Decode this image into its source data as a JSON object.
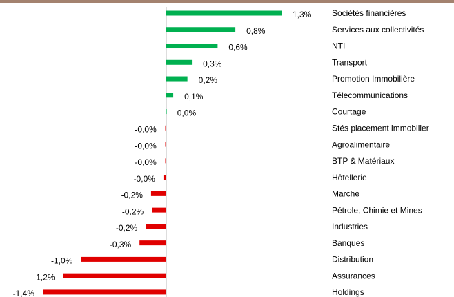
{
  "chart_data": {
    "type": "hbar",
    "categories": [
      "Sociétés financières",
      "Services aux collectivités",
      "NTI",
      "Transport",
      "Promotion Immobilière",
      "Télecommunications",
      "Courtage",
      "Stés placement immobilier",
      "Agroalimentaire",
      "BTP & Matériaux",
      "Hôtellerie",
      "Marché",
      "Pétrole, Chimie et Mines",
      "Industries",
      "Banques",
      "Distribution",
      "Assurances",
      "Holdings"
    ],
    "values": [
      1.3,
      0.78,
      0.58,
      0.29,
      0.24,
      0.08,
      0,
      -0.01,
      -0.01,
      -0.01,
      -0.03,
      -0.17,
      -0.16,
      -0.23,
      -0.3,
      -0.96,
      -1.16,
      -1.39
    ],
    "value_labels": [
      "1,3%",
      "0,8%",
      "0,6%",
      "0,3%",
      "0,2%",
      "0,1%",
      "0,0%",
      "-0,0%",
      "-0,0%",
      "-0,0%",
      "-0,0%",
      "-0,2%",
      "-0,2%",
      "-0,2%",
      "-0,3%",
      "-1,0%",
      "-1,2%",
      "-1,4%"
    ],
    "positive_color": "#00b050",
    "negative_color": "#e00000"
  }
}
